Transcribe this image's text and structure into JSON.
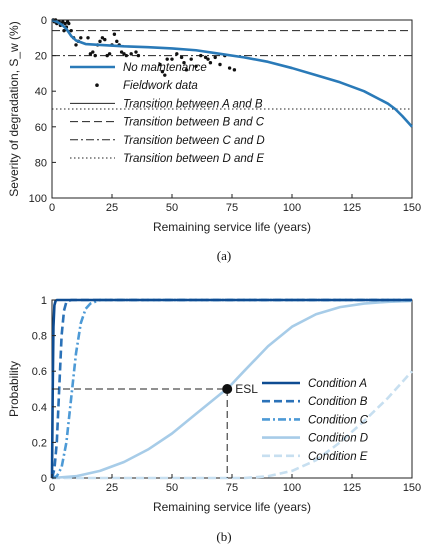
{
  "chart_data": [
    {
      "type": "line",
      "xlabel": "Remaining service life (years)",
      "ylabel": "Severity of degradation, S_w (%)",
      "xlim": [
        0,
        150
      ],
      "ylim": [
        0,
        100
      ],
      "y_inverted": true,
      "xticks": [
        0,
        25,
        50,
        75,
        100,
        125,
        150
      ],
      "yticks": [
        0,
        20,
        40,
        60,
        80,
        100
      ],
      "legend_position": "top-left",
      "grid": false,
      "caption": "(a)",
      "series": [
        {
          "name": "No maintenance",
          "style": "solid-thick",
          "color": "#2a7ab8",
          "x": [
            0,
            2,
            4,
            6,
            8,
            10,
            14,
            20,
            30,
            40,
            50,
            60,
            70,
            80,
            90,
            100,
            110,
            120,
            130,
            140,
            143,
            146,
            150
          ],
          "y": [
            0,
            1,
            2.5,
            5,
            9,
            11.5,
            13.5,
            14,
            14.8,
            15.3,
            16,
            17,
            19,
            21,
            23.5,
            27,
            31,
            35,
            40,
            47,
            50,
            54,
            60
          ]
        },
        {
          "name": "Fieldwork data",
          "style": "markers",
          "color": "#111111",
          "x": [
            0.5,
            1,
            1.5,
            2,
            3,
            3.5,
            4,
            4.5,
            5,
            5.5,
            6,
            6.5,
            7,
            8,
            9,
            10,
            11,
            12,
            15,
            16,
            17,
            18,
            19,
            20,
            21,
            22,
            23,
            24,
            25,
            26,
            27,
            28,
            29,
            30,
            31,
            33,
            35,
            36,
            45,
            46,
            47,
            48,
            50,
            52,
            54,
            55,
            56,
            58,
            60,
            62,
            64,
            65,
            66,
            68,
            70,
            72,
            74,
            76
          ],
          "y": [
            0,
            1,
            0,
            2,
            1,
            3,
            2,
            1,
            6,
            2,
            4,
            1,
            2,
            6,
            10,
            14,
            12,
            10,
            10,
            19,
            18,
            20,
            14,
            12,
            10,
            11,
            20,
            19,
            14,
            8,
            12,
            14,
            18,
            19,
            20,
            19,
            18,
            20,
            25,
            29,
            31,
            22,
            22,
            19,
            21,
            24,
            28,
            22,
            26,
            20,
            21,
            22,
            24,
            21,
            25,
            20,
            27,
            28
          ]
        },
        {
          "name": "Transition between A and B",
          "style": "solid-thin",
          "y_value": 0
        },
        {
          "name": "Transition between B and C",
          "style": "dashed",
          "y_value": 6
        },
        {
          "name": "Transition between C and D",
          "style": "dashdot",
          "y_value": 20
        },
        {
          "name": "Transition between D and E",
          "style": "dotted",
          "y_value": 50
        }
      ]
    },
    {
      "type": "line",
      "xlabel": "Remaining service life (years)",
      "ylabel": "Probability",
      "xlim": [
        0,
        150
      ],
      "ylim": [
        0,
        1
      ],
      "xticks": [
        0,
        25,
        50,
        75,
        100,
        125,
        150
      ],
      "yticks": [
        0,
        0.2,
        0.4,
        0.6,
        0.8,
        1
      ],
      "legend_position": "bottom-right",
      "grid": false,
      "caption": "(b)",
      "annotation": {
        "label": "ESL",
        "x": 73,
        "y": 0.5
      },
      "series": [
        {
          "name": "Condition A",
          "style": "solid",
          "color": "#0e4c92",
          "x": [
            0,
            0.3,
            0.6,
            1,
            1.5,
            2,
            150
          ],
          "y": [
            0,
            0.5,
            0.85,
            0.97,
            0.995,
            1,
            1
          ]
        },
        {
          "name": "Condition B",
          "style": "dashed",
          "color": "#2b72b8",
          "x": [
            0,
            1,
            2,
            3,
            4,
            5,
            6,
            8,
            150
          ],
          "y": [
            0,
            0.05,
            0.2,
            0.5,
            0.8,
            0.94,
            0.99,
            1,
            1
          ]
        },
        {
          "name": "Condition C",
          "style": "dashdot",
          "color": "#4d9ad6",
          "x": [
            0,
            2,
            4,
            6,
            8,
            10,
            12,
            14,
            16,
            20,
            150
          ],
          "y": [
            0,
            0.01,
            0.06,
            0.2,
            0.45,
            0.7,
            0.87,
            0.95,
            0.98,
            1,
            1
          ]
        },
        {
          "name": "Condition D",
          "style": "solid",
          "color": "#a7cce8",
          "x": [
            0,
            10,
            20,
            30,
            40,
            50,
            60,
            70,
            73,
            80,
            90,
            100,
            110,
            120,
            130,
            140,
            150
          ],
          "y": [
            0,
            0.01,
            0.04,
            0.09,
            0.16,
            0.25,
            0.36,
            0.47,
            0.5,
            0.6,
            0.74,
            0.85,
            0.92,
            0.96,
            0.98,
            0.99,
            0.995
          ]
        },
        {
          "name": "Condition E",
          "style": "dashed",
          "color": "#c7dff0",
          "x": [
            0,
            80,
            90,
            100,
            110,
            120,
            130,
            140,
            150
          ],
          "y": [
            0,
            0,
            0.01,
            0.04,
            0.1,
            0.2,
            0.32,
            0.45,
            0.6
          ]
        }
      ]
    }
  ]
}
